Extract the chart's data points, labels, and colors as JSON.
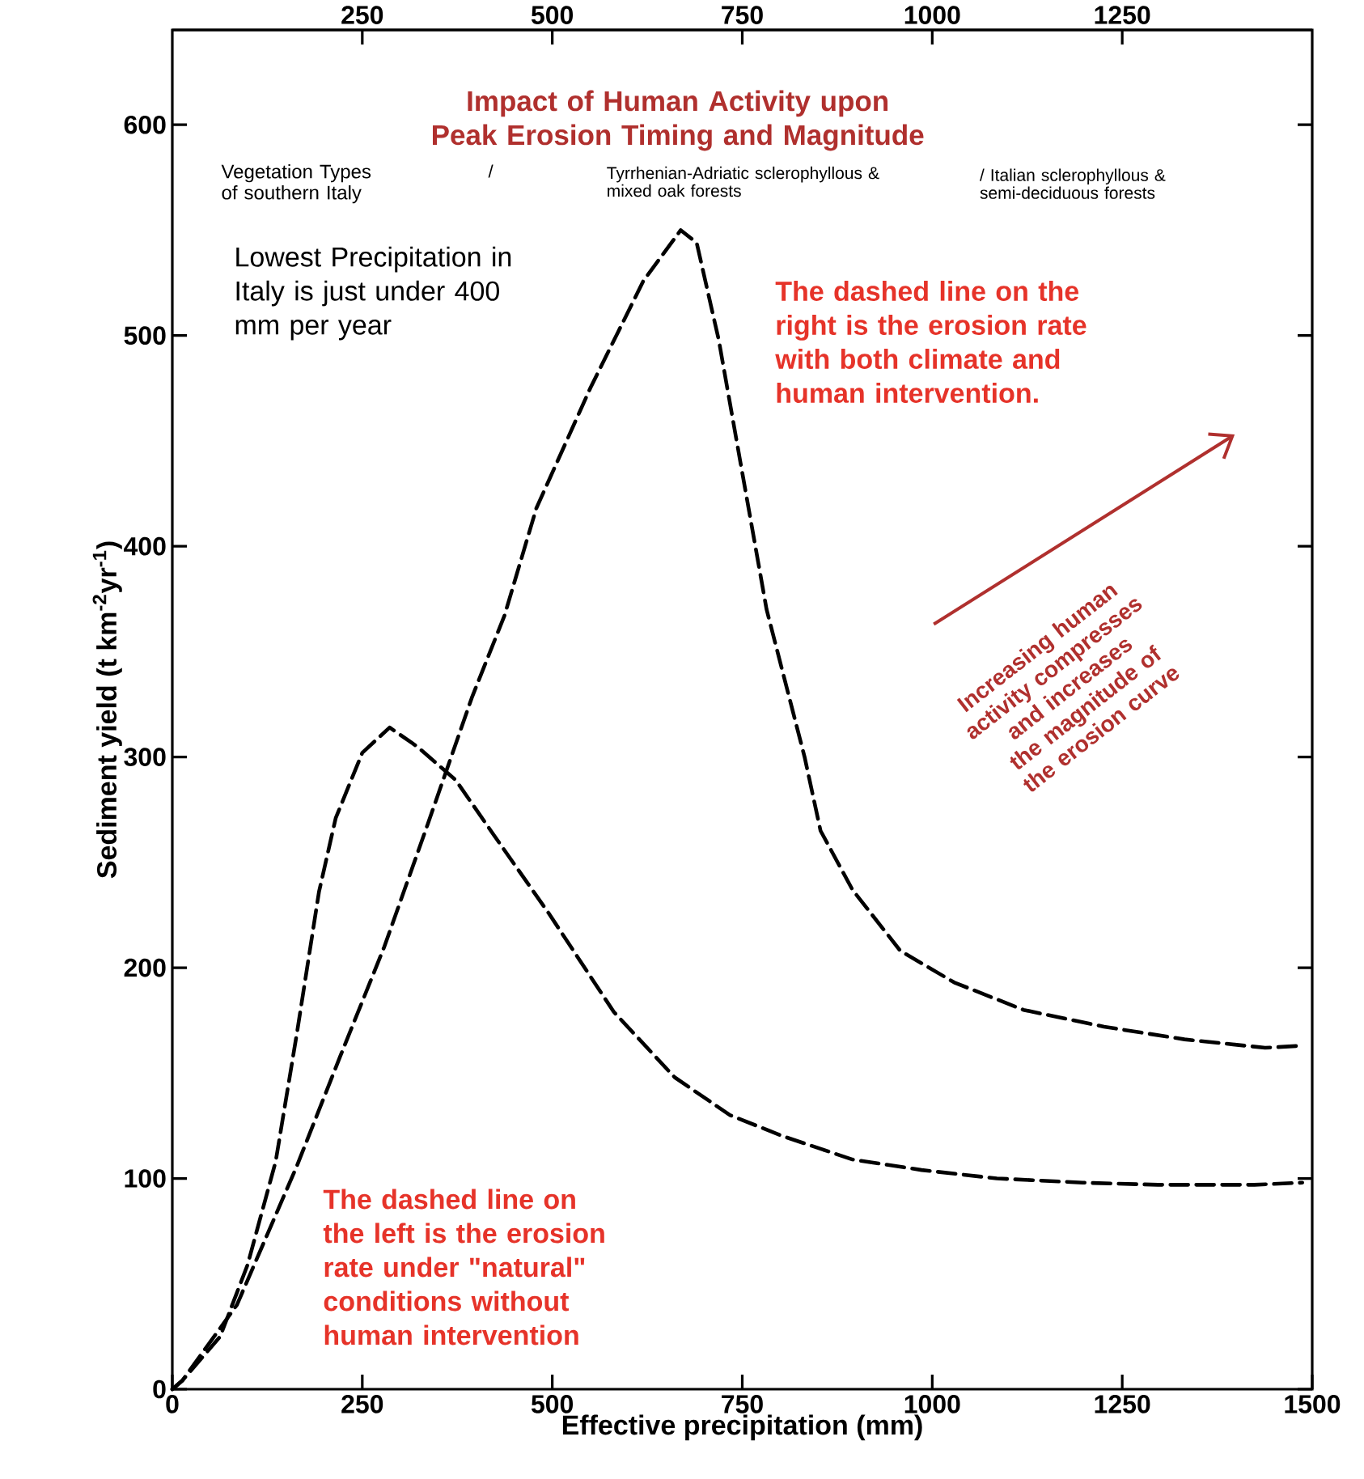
{
  "chart_data": {
    "type": "line",
    "title": "Impact of Human Activity upon Peak Erosion Timing and Magnitude",
    "xlabel": "Effective precipitation (mm)",
    "ylabel": "Sediment yield (t km$^{-2}$yr$^{-1}$)",
    "xlim": [
      0,
      1500
    ],
    "xticks": [
      0,
      250,
      500,
      750,
      1000,
      1250,
      1500
    ],
    "x2lim": [
      0,
      1500
    ],
    "x2ticks": [
      250,
      500,
      750,
      1000,
      1250
    ],
    "ylim": [
      0,
      645
    ],
    "yticks": [
      0,
      100,
      200,
      300,
      400,
      500,
      600
    ],
    "line_style": "dashed",
    "marker": "none",
    "series": [
      {
        "color": "#000000",
        "x": [
          0,
          13,
          63,
          99,
          136,
          164,
          193,
          215,
          250,
          286,
          322,
          373,
          423,
          495,
          581,
          661,
          734,
          804,
          895,
          986,
          1085,
          1198,
          1297,
          1424,
          1487
        ],
        "values": [
          0,
          4,
          25,
          59,
          108,
          169,
          236,
          271,
          302,
          314,
          305,
          289,
          263,
          226,
          179,
          148,
          130,
          120,
          109,
          104,
          100,
          98,
          97,
          97,
          98
        ]
      },
      {
        "color": "#000000",
        "x": [
          0,
          13,
          85,
          164,
          221,
          279,
          336,
          394,
          437,
          479,
          550,
          620,
          669,
          690,
          719,
          747,
          782,
          832,
          853,
          895,
          958,
          1029,
          1120,
          1226,
          1332,
          1438,
          1487
        ],
        "values": [
          0,
          4,
          40,
          106,
          158,
          210,
          268,
          328,
          367,
          418,
          475,
          526,
          550,
          544,
          498,
          441,
          370,
          300,
          265,
          237,
          208,
          193,
          180,
          172,
          166,
          162,
          163
        ]
      }
    ],
    "annotations": [
      "Vegetation Types of southern Italy",
      "/",
      "Tyrrhenian-Adriatic sclerophyllous & mixed oak forests",
      "/ Italian sclerophyllous & semi-deciduous forests",
      "Lowest Precipitation in Italy is just under 400 mm per year",
      "The dashed line on the right is the erosion rate with both climate and human intervention.",
      "The dashed line on the left is the erosion rate under \"natural\" conditions without human intervention",
      "Increasing human activity compresses and increases the magnitude of the erosion curve"
    ]
  }
}
